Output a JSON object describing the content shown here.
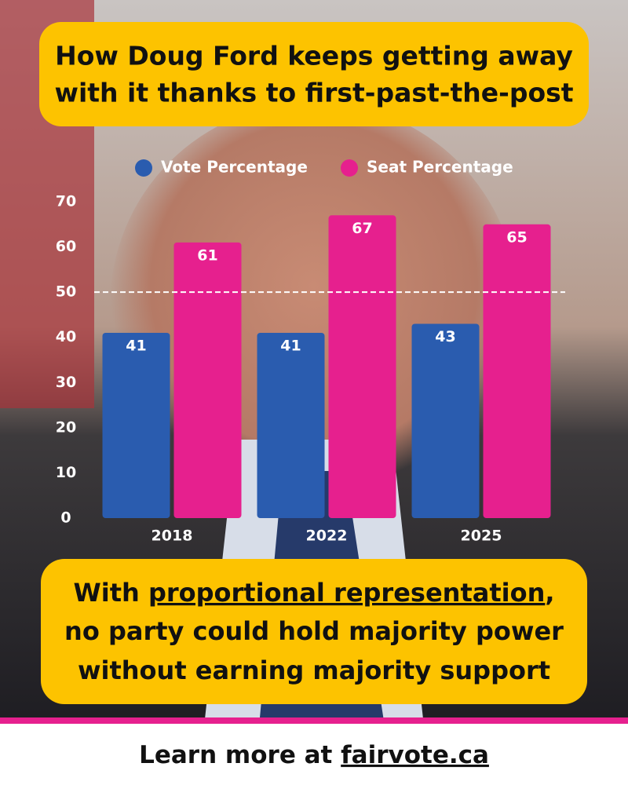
{
  "chart_data": {
    "type": "bar",
    "title": [
      "How Doug Ford keeps getting away",
      "with it thanks to first-past-the-post"
    ],
    "categories": [
      "2018",
      "2022",
      "2025"
    ],
    "series": [
      {
        "name": "Vote Percentage",
        "color": "#2a5caf",
        "values": [
          41,
          41,
          43
        ]
      },
      {
        "name": "Seat Percentage",
        "color": "#e6208e",
        "values": [
          61,
          67,
          65
        ]
      }
    ],
    "ylim": [
      0,
      70
    ],
    "yticks": [
      0,
      10,
      20,
      30,
      40,
      50,
      60,
      70
    ],
    "reference_line": 50,
    "caption_first": [
      "With",
      "proportional representation",
      ","
    ],
    "caption_lines": [
      "no party could hold majority power",
      "without earning majority support"
    ]
  },
  "footer": {
    "text": "Learn more at",
    "link": "fairvote.ca"
  }
}
